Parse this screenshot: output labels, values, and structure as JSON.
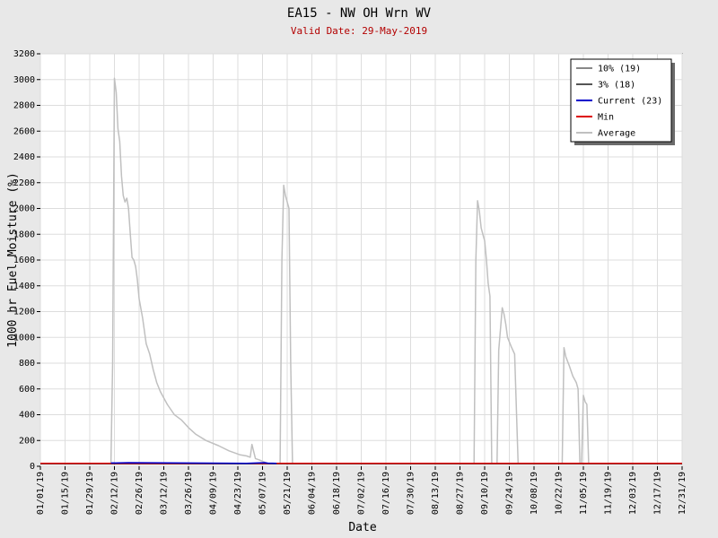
{
  "chart_data": {
    "type": "line",
    "title": "EA15 - NW OH Wrn WV",
    "subtitle": "Valid Date: 29-May-2019",
    "xlabel": "Date",
    "ylabel": "1000 hr Fuel Moisture (%)",
    "ylim": [
      0,
      3200
    ],
    "yticks": [
      0,
      200,
      400,
      600,
      800,
      1000,
      1200,
      1400,
      1600,
      1800,
      2000,
      2200,
      2400,
      2600,
      2800,
      3000,
      3200
    ],
    "xlim": [
      "2019-01-01",
      "2019-12-31"
    ],
    "x_tick_dates": [
      "2019-01-01",
      "2019-01-15",
      "2019-01-29",
      "2019-02-12",
      "2019-02-26",
      "2019-03-12",
      "2019-03-26",
      "2019-04-09",
      "2019-04-23",
      "2019-05-07",
      "2019-05-21",
      "2019-06-04",
      "2019-06-18",
      "2019-07-02",
      "2019-07-16",
      "2019-07-30",
      "2019-08-13",
      "2019-08-27",
      "2019-09-10",
      "2019-09-24",
      "2019-10-08",
      "2019-10-22",
      "2019-11-05",
      "2019-11-19",
      "2019-12-03",
      "2019-12-17",
      "2019-12-31"
    ],
    "x_tick_labels": [
      "01/01/19",
      "01/15/19",
      "01/29/19",
      "02/12/19",
      "02/26/19",
      "03/12/19",
      "03/26/19",
      "04/09/19",
      "04/23/19",
      "05/07/19",
      "05/21/19",
      "06/04/19",
      "06/18/19",
      "07/02/19",
      "07/16/19",
      "07/30/19",
      "08/13/19",
      "08/27/19",
      "09/10/19",
      "09/24/19",
      "10/08/19",
      "10/22/19",
      "11/05/19",
      "11/19/19",
      "12/03/19",
      "12/17/19",
      "12/31/19"
    ],
    "grid": true,
    "legend_position": "top-right",
    "series": [
      {
        "name": "10% (19)",
        "color": "#888888",
        "x": [
          "2019-01-01",
          "2019-12-31"
        ],
        "y": [
          19,
          19
        ]
      },
      {
        "name": "3% (18)",
        "color": "#555555",
        "x": [
          "2019-01-01",
          "2019-12-31"
        ],
        "y": [
          18,
          18
        ]
      },
      {
        "name": "Current (23)",
        "color": "#0000cc",
        "x": [
          "2019-02-10",
          "2019-02-20",
          "2019-04-28",
          "2019-05-08",
          "2019-05-10",
          "2019-05-15"
        ],
        "y": [
          25,
          28,
          23,
          28,
          24,
          23
        ]
      },
      {
        "name": "Min",
        "color": "#dd0000",
        "x": [
          "2019-01-01",
          "2019-12-31"
        ],
        "y": [
          22,
          22
        ]
      },
      {
        "name": "Average",
        "color": "#c0c0c0",
        "x": [
          "2019-01-01",
          "2019-02-10",
          "2019-02-11",
          "2019-02-12",
          "2019-02-13",
          "2019-02-14",
          "2019-02-15",
          "2019-02-16",
          "2019-02-17",
          "2019-02-18",
          "2019-02-19",
          "2019-02-20",
          "2019-02-21",
          "2019-02-22",
          "2019-02-23",
          "2019-02-24",
          "2019-02-25",
          "2019-02-26",
          "2019-02-28",
          "2019-03-02",
          "2019-03-04",
          "2019-03-06",
          "2019-03-08",
          "2019-03-10",
          "2019-03-14",
          "2019-03-18",
          "2019-03-22",
          "2019-03-26",
          "2019-03-30",
          "2019-04-05",
          "2019-04-12",
          "2019-04-18",
          "2019-04-24",
          "2019-04-28",
          "2019-04-30",
          "2019-05-01",
          "2019-05-03",
          "2019-05-05",
          "2019-05-10",
          "2019-05-17",
          "2019-05-18",
          "2019-05-19",
          "2019-05-20",
          "2019-05-22",
          "2019-05-23",
          "2019-05-24",
          "2019-05-30",
          "2019-09-04",
          "2019-09-05",
          "2019-09-06",
          "2019-09-07",
          "2019-09-08",
          "2019-09-09",
          "2019-09-10",
          "2019-09-11",
          "2019-09-12",
          "2019-09-13",
          "2019-09-14",
          "2019-09-15",
          "2019-09-17",
          "2019-09-18",
          "2019-09-20",
          "2019-09-21",
          "2019-09-22",
          "2019-09-23",
          "2019-09-25",
          "2019-09-27",
          "2019-09-29",
          "2019-10-01",
          "2019-10-02",
          "2019-10-05",
          "2019-10-24",
          "2019-10-25",
          "2019-10-26",
          "2019-10-28",
          "2019-10-30",
          "2019-11-01",
          "2019-11-02",
          "2019-11-03",
          "2019-11-04",
          "2019-11-05",
          "2019-11-06",
          "2019-11-07",
          "2019-11-08",
          "2019-11-09",
          "2019-11-10",
          "2019-11-11",
          "2019-11-12",
          "2019-12-31"
        ],
        "y": [
          22,
          22,
          800,
          3010,
          2900,
          2620,
          2520,
          2250,
          2100,
          2050,
          2080,
          2000,
          1800,
          1620,
          1600,
          1550,
          1450,
          1300,
          1150,
          950,
          870,
          750,
          650,
          580,
          480,
          400,
          360,
          300,
          250,
          200,
          160,
          120,
          90,
          80,
          70,
          170,
          60,
          50,
          22,
          22,
          1600,
          2180,
          2100,
          2000,
          800,
          22,
          22,
          22,
          1600,
          2060,
          1980,
          1850,
          1800,
          1750,
          1600,
          1420,
          1320,
          22,
          22,
          22,
          900,
          1230,
          1180,
          1100,
          1000,
          930,
          870,
          22,
          22,
          22,
          22,
          22,
          920,
          850,
          780,
          700,
          650,
          600,
          22,
          22,
          550,
          500,
          480,
          22,
          22,
          22,
          22,
          22,
          22
        ]
      }
    ]
  }
}
